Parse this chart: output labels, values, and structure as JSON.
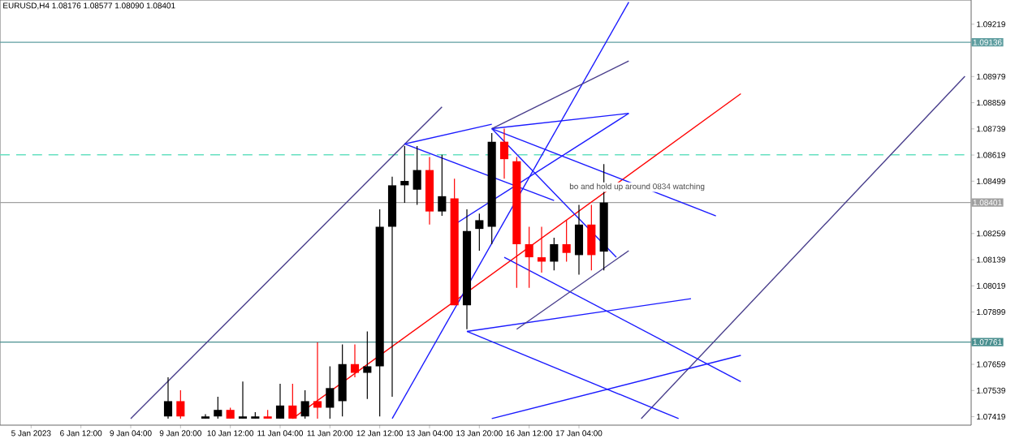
{
  "chart_data": {
    "type": "candlestick",
    "title": "EURUSD,H4  1.08176 1.08577 1.08090 1.08401",
    "categories": [
      null,
      null,
      "5 Jan 2023",
      null,
      null,
      null,
      "6 Jan 12:00",
      null,
      null,
      null,
      "9 Jan 04:00",
      null,
      null,
      null,
      "9 Jan 20:00",
      null,
      null,
      null,
      "10 Jan 12:00",
      null,
      null,
      null,
      "11 Jan 04:00",
      null,
      null,
      null,
      "11 Jan 20:00",
      null,
      null,
      null,
      "12 Jan 12:00",
      null,
      null,
      null,
      "13 Jan 04:00",
      null,
      null,
      null,
      "13 Jan 20:00",
      null,
      null,
      null,
      "16 Jan 12:00",
      null,
      null,
      null,
      "17 Jan 04:00",
      null,
      null,
      null,
      null,
      null,
      null,
      null,
      null,
      null,
      null,
      null,
      null,
      null,
      null,
      null,
      null,
      null,
      null,
      null,
      null,
      null,
      null,
      null,
      null,
      null,
      null,
      null,
      null,
      null,
      null,
      null
    ],
    "ohlc": [
      null,
      null,
      null,
      null,
      null,
      null,
      null,
      null,
      null,
      null,
      null,
      null,
      null,
      [
        1.0742,
        1.076,
        1.0741,
        1.0749
      ],
      [
        1.0749,
        1.0754,
        1.0741,
        1.0742
      ],
      null,
      [
        1.0741,
        1.0743,
        1.0741,
        1.0742
      ],
      [
        1.0742,
        1.0751,
        1.0741,
        1.0745
      ],
      [
        1.0745,
        1.0746,
        1.0741,
        1.0741
      ],
      [
        1.0741,
        1.0758,
        1.0741,
        1.0742
      ],
      [
        1.0741,
        1.0744,
        1.0741,
        1.0742
      ],
      [
        1.0742,
        1.0745,
        1.0741,
        1.0741
      ],
      [
        1.0741,
        1.0757,
        1.0741,
        1.0747
      ],
      [
        1.0747,
        1.0757,
        1.0741,
        1.0741
      ],
      [
        1.0742,
        1.0754,
        1.0741,
        1.0749
      ],
      [
        1.0749,
        1.0776,
        1.0741,
        1.0746
      ],
      [
        1.0746,
        1.0765,
        1.0741,
        1.0755
      ],
      [
        1.0749,
        1.0775,
        1.0742,
        1.0766
      ],
      [
        1.0766,
        1.0775,
        1.076,
        1.0762
      ],
      [
        1.0762,
        1.0781,
        1.075,
        1.0765
      ],
      [
        1.0765,
        1.0837,
        1.0742,
        1.0829
      ],
      [
        1.0829,
        1.0852,
        1.0751,
        1.0848
      ],
      [
        1.0848,
        1.0866,
        1.084,
        1.085
      ],
      [
        1.0846,
        1.0866,
        1.0839,
        1.0855
      ],
      [
        1.0855,
        1.0861,
        1.083,
        1.0836
      ],
      [
        1.0836,
        1.0862,
        1.0834,
        1.0843
      ],
      [
        1.0842,
        1.0851,
        1.0793,
        1.0793
      ],
      [
        1.0793,
        1.0837,
        1.0782,
        1.0827
      ],
      [
        1.0828,
        1.0835,
        1.0818,
        1.0832
      ],
      [
        1.0829,
        1.0872,
        1.0821,
        1.0868
      ],
      [
        1.0868,
        1.0874,
        1.0851,
        1.086
      ],
      [
        1.0859,
        1.0861,
        1.0801,
        1.0821
      ],
      [
        1.0821,
        1.0829,
        1.0801,
        1.0815
      ],
      [
        1.0815,
        1.0829,
        1.0808,
        1.0813
      ],
      [
        1.0813,
        1.0824,
        1.0809,
        1.0821
      ],
      [
        1.0821,
        1.0832,
        1.0813,
        1.0817
      ],
      [
        1.0816,
        1.0839,
        1.0807,
        1.083
      ],
      [
        1.083,
        1.0839,
        1.0809,
        1.0816
      ],
      [
        1.08176,
        1.08577,
        1.0809,
        1.08401
      ],
      null,
      null,
      null,
      null,
      null,
      null,
      null,
      null,
      null,
      null,
      null,
      null,
      null,
      null,
      null,
      null,
      null,
      null,
      null,
      null,
      null,
      null,
      null,
      null,
      null,
      null,
      null,
      null,
      null
    ],
    "colors": [
      null,
      null,
      null,
      null,
      null,
      null,
      null,
      null,
      null,
      null,
      null,
      null,
      null,
      "#000000",
      "#ff0000",
      null,
      "#000000",
      "#000000",
      "#ff0000",
      "#000000",
      "#000000",
      "#ff0000",
      "#000000",
      "#ff0000",
      "#000000",
      "#ff0000",
      "#000000",
      "#000000",
      "#ff0000",
      "#000000",
      "#000000",
      "#000000",
      "#000000",
      "#000000",
      "#ff0000",
      "#000000",
      "#ff0000",
      "#000000",
      "#000000",
      "#000000",
      "#ff0000",
      "#ff0000",
      "#ff0000",
      "#ff0000",
      "#000000",
      "#ff0000",
      "#000000",
      "#ff0000",
      "#000000",
      null,
      null,
      null,
      null,
      null,
      null,
      null,
      null,
      null,
      null,
      null,
      null,
      null,
      null,
      null,
      null,
      null,
      null,
      null,
      null,
      null,
      null,
      null,
      null,
      null,
      null,
      null,
      null,
      null
    ],
    "series": [
      {
        "type": "line",
        "color": "#ff0000",
        "values": [
          null,
          null,
          null,
          null,
          null,
          null,
          null,
          null,
          null,
          null,
          null,
          null,
          null,
          null,
          null,
          null,
          null,
          null,
          null,
          null,
          null,
          null,
          null,
          1.0741,
          null,
          null,
          null,
          null,
          null,
          null,
          null,
          null,
          null,
          null,
          null,
          null,
          null,
          null,
          null,
          null,
          null,
          null,
          null,
          null,
          null,
          null,
          null,
          null,
          null,
          null,
          null,
          null,
          null,
          null,
          null,
          null,
          null,
          null,
          null,
          1.089,
          null,
          null,
          null,
          null,
          null,
          null,
          null,
          null,
          null,
          null,
          null,
          null,
          null,
          null,
          null,
          null,
          null,
          null
        ]
      },
      {
        "type": "line",
        "color": "#483d8b",
        "values": [
          null,
          null,
          null,
          null,
          null,
          null,
          null,
          null,
          null,
          null,
          1.0741,
          null,
          null,
          null,
          null,
          null,
          null,
          null,
          null,
          null,
          null,
          null,
          null,
          null,
          null,
          null,
          null,
          null,
          null,
          null,
          null,
          null,
          null,
          null,
          null,
          1.0884,
          null,
          null,
          null,
          null,
          null,
          null,
          null,
          null,
          null,
          null,
          null,
          null,
          null,
          null,
          null,
          null,
          null,
          null,
          null,
          null,
          null,
          null,
          null,
          null,
          null,
          null,
          null,
          null,
          null,
          null,
          null,
          null,
          null,
          null,
          null,
          null,
          null,
          null,
          null,
          null,
          null,
          null
        ]
      },
      {
        "type": "line",
        "color": "#483d8b",
        "values": [
          null,
          null,
          null,
          null,
          null,
          null,
          null,
          null,
          null,
          null,
          null,
          null,
          null,
          null,
          null,
          null,
          null,
          null,
          null,
          null,
          null,
          null,
          null,
          null,
          null,
          null,
          null,
          null,
          null,
          null,
          null,
          null,
          null,
          null,
          null,
          null,
          null,
          null,
          null,
          null,
          null,
          null,
          null,
          null,
          null,
          null,
          null,
          null,
          null,
          null,
          null,
          1.0741,
          null,
          null,
          null,
          null,
          null,
          null,
          null,
          null,
          null,
          null,
          null,
          null,
          null,
          null,
          null,
          null,
          null,
          null,
          null,
          null,
          null,
          null,
          null,
          null,
          null,
          1.0898
        ]
      },
      {
        "type": "line",
        "color": "#1a1aff",
        "values": [
          null,
          null,
          null,
          null,
          null,
          null,
          null,
          null,
          null,
          null,
          null,
          null,
          null,
          null,
          null,
          null,
          null,
          null,
          null,
          null,
          null,
          null,
          null,
          null,
          null,
          null,
          null,
          null,
          null,
          null,
          null,
          1.0741,
          null,
          null,
          null,
          null,
          null,
          null,
          null,
          null,
          null,
          null,
          null,
          null,
          null,
          null,
          null,
          null,
          null,
          null,
          1.0932,
          null,
          null,
          null,
          null,
          null,
          null,
          null,
          null,
          null,
          null,
          null,
          null,
          null,
          null,
          null,
          null,
          null,
          null,
          null,
          null,
          null,
          null,
          null,
          null,
          null,
          null,
          null
        ]
      },
      {
        "type": "line",
        "color": "#1a1aff",
        "values": [
          null,
          null,
          null,
          null,
          null,
          null,
          null,
          null,
          null,
          null,
          null,
          null,
          null,
          null,
          null,
          null,
          null,
          null,
          null,
          null,
          null,
          null,
          null,
          null,
          null,
          null,
          null,
          null,
          null,
          null,
          null,
          null,
          null,
          null,
          null,
          null,
          null,
          1.0781,
          null,
          null,
          null,
          null,
          null,
          null,
          null,
          null,
          null,
          null,
          null,
          null,
          null,
          null,
          null,
          null,
          null,
          1.0796,
          null,
          null,
          null,
          null,
          null,
          null,
          null,
          null,
          null,
          null,
          null,
          null,
          null,
          null,
          null,
          null,
          null,
          null,
          null,
          null,
          null,
          null
        ]
      },
      {
        "type": "line",
        "color": "#1a1aff",
        "values": [
          null,
          null,
          null,
          null,
          null,
          null,
          null,
          null,
          null,
          null,
          null,
          null,
          null,
          null,
          null,
          null,
          null,
          null,
          null,
          null,
          null,
          null,
          null,
          null,
          null,
          null,
          null,
          null,
          null,
          null,
          null,
          null,
          null,
          null,
          null,
          null,
          null,
          1.0781,
          null,
          null,
          null,
          null,
          null,
          null,
          null,
          null,
          null,
          null,
          null,
          null,
          null,
          null,
          null,
          null,
          1.0741,
          null,
          null,
          null,
          null,
          null,
          null,
          null,
          null,
          null,
          null,
          null,
          null,
          null,
          null,
          null,
          null,
          null,
          null,
          null,
          null,
          null,
          null,
          null
        ]
      },
      {
        "type": "line",
        "color": "#1a1aff",
        "values": [
          null,
          null,
          null,
          null,
          null,
          null,
          null,
          null,
          null,
          null,
          null,
          null,
          null,
          null,
          null,
          null,
          null,
          null,
          null,
          null,
          null,
          null,
          null,
          null,
          null,
          null,
          null,
          null,
          null,
          null,
          null,
          null,
          null,
          null,
          null,
          null,
          null,
          null,
          null,
          1.0741,
          null,
          null,
          null,
          null,
          null,
          null,
          null,
          null,
          null,
          null,
          null,
          null,
          null,
          null,
          null,
          null,
          null,
          null,
          null,
          1.077,
          null,
          null,
          null,
          null,
          null,
          null,
          null,
          null,
          null,
          null,
          null,
          null,
          null,
          null,
          null,
          null,
          null,
          null
        ]
      },
      {
        "type": "line",
        "color": "#1a1aff",
        "values": [
          null,
          null,
          null,
          null,
          null,
          null,
          null,
          null,
          null,
          null,
          null,
          null,
          null,
          null,
          null,
          null,
          null,
          null,
          null,
          null,
          null,
          null,
          null,
          null,
          null,
          null,
          null,
          null,
          null,
          null,
          null,
          null,
          1.0867,
          null,
          null,
          null,
          null,
          null,
          null,
          1.0876,
          null,
          null,
          null,
          null,
          null,
          null,
          null,
          null,
          null,
          null,
          null,
          null,
          null,
          null,
          null,
          null,
          null,
          null,
          null,
          null,
          null,
          null,
          null,
          null,
          null,
          null,
          null,
          null,
          null,
          null,
          null,
          null,
          null,
          null,
          null,
          null,
          null,
          null
        ]
      },
      {
        "type": "line",
        "color": "#1a1aff",
        "values": [
          null,
          null,
          null,
          null,
          null,
          null,
          null,
          null,
          null,
          null,
          null,
          null,
          null,
          null,
          null,
          null,
          null,
          null,
          null,
          null,
          null,
          null,
          null,
          null,
          null,
          null,
          null,
          null,
          null,
          null,
          null,
          null,
          1.0867,
          null,
          null,
          null,
          null,
          null,
          null,
          null,
          null,
          null,
          null,
          null,
          1.0841,
          null,
          null,
          null,
          null,
          null,
          null,
          null,
          null,
          null,
          null,
          null,
          null,
          null,
          null,
          null,
          null,
          null,
          null,
          null,
          null,
          null,
          null,
          null,
          null,
          null,
          null,
          null,
          null,
          null,
          null,
          null,
          null,
          null
        ]
      },
      {
        "type": "line",
        "color": "#1a1aff",
        "values": [
          null,
          null,
          null,
          null,
          null,
          null,
          null,
          null,
          null,
          null,
          null,
          null,
          null,
          null,
          null,
          null,
          null,
          null,
          null,
          null,
          null,
          null,
          null,
          null,
          null,
          null,
          null,
          null,
          null,
          null,
          null,
          null,
          null,
          null,
          null,
          null,
          null,
          null,
          null,
          1.0874,
          null,
          null,
          null,
          null,
          null,
          null,
          null,
          null,
          null,
          null,
          1.0881,
          null,
          null,
          null,
          null,
          null,
          null,
          null,
          null,
          null,
          null,
          null,
          null,
          null,
          null,
          null,
          null,
          null,
          null,
          null,
          null,
          null,
          null,
          null,
          null,
          null,
          null,
          null
        ]
      },
      {
        "type": "line",
        "color": "#1a1aff",
        "values": [
          null,
          null,
          null,
          null,
          null,
          null,
          null,
          null,
          null,
          null,
          null,
          null,
          null,
          null,
          null,
          null,
          null,
          null,
          null,
          null,
          null,
          null,
          null,
          null,
          null,
          null,
          null,
          null,
          null,
          null,
          null,
          null,
          null,
          null,
          null,
          null,
          null,
          null,
          null,
          1.0874,
          null,
          null,
          null,
          null,
          null,
          null,
          null,
          null,
          null,
          null,
          null,
          null,
          null,
          null,
          null,
          null,
          null,
          1.0834,
          null,
          null,
          null,
          null,
          null,
          null,
          null,
          null,
          null,
          null,
          null,
          null,
          null,
          null,
          null,
          null,
          null,
          null,
          null,
          null
        ]
      },
      {
        "type": "line",
        "color": "#483d8b",
        "values": [
          null,
          null,
          null,
          null,
          null,
          null,
          null,
          null,
          null,
          null,
          null,
          null,
          null,
          null,
          null,
          null,
          null,
          null,
          null,
          null,
          null,
          null,
          null,
          null,
          null,
          null,
          null,
          null,
          null,
          null,
          null,
          null,
          null,
          null,
          null,
          null,
          null,
          null,
          null,
          1.0874,
          null,
          null,
          null,
          null,
          null,
          null,
          null,
          null,
          null,
          null,
          1.0905,
          null,
          null,
          null,
          null,
          null,
          null,
          null,
          null,
          null,
          null,
          null,
          null,
          null,
          null,
          null,
          null,
          null,
          null,
          null,
          null,
          null,
          null,
          null,
          null,
          null,
          null,
          null
        ]
      },
      {
        "type": "line",
        "color": "#1a1aff",
        "values": [
          null,
          null,
          null,
          null,
          null,
          null,
          null,
          null,
          null,
          null,
          null,
          null,
          null,
          null,
          null,
          null,
          null,
          null,
          null,
          null,
          null,
          null,
          null,
          null,
          null,
          null,
          null,
          null,
          null,
          null,
          null,
          null,
          null,
          null,
          null,
          null,
          1.083,
          null,
          null,
          null,
          null,
          null,
          null,
          null,
          null,
          null,
          null,
          null,
          null,
          null,
          1.0881,
          null,
          null,
          null,
          null,
          null,
          null,
          null,
          null,
          null,
          null,
          null,
          null,
          null,
          null,
          null,
          null,
          null,
          null,
          null,
          null,
          null,
          null,
          null,
          null,
          null,
          null,
          null
        ]
      },
      {
        "type": "line",
        "color": "#1a1aff",
        "values": [
          null,
          null,
          null,
          null,
          null,
          null,
          null,
          null,
          null,
          null,
          null,
          null,
          null,
          null,
          null,
          null,
          null,
          null,
          null,
          null,
          null,
          null,
          null,
          null,
          null,
          null,
          null,
          null,
          null,
          null,
          null,
          null,
          null,
          null,
          null,
          null,
          null,
          null,
          null,
          1.0874,
          null,
          null,
          null,
          null,
          null,
          null,
          null,
          null,
          null,
          1.0815,
          null,
          null,
          null,
          null,
          null,
          null,
          null,
          null,
          null,
          null,
          null,
          null,
          null,
          null,
          null,
          null,
          null,
          null,
          null,
          null,
          null,
          null,
          null,
          null,
          null,
          null,
          null,
          null
        ]
      },
      {
        "type": "line",
        "color": "#1a1aff",
        "values": [
          null,
          null,
          null,
          null,
          null,
          null,
          null,
          null,
          null,
          null,
          null,
          null,
          null,
          null,
          null,
          null,
          null,
          null,
          null,
          null,
          null,
          null,
          null,
          null,
          null,
          null,
          null,
          null,
          null,
          null,
          null,
          null,
          null,
          null,
          null,
          null,
          null,
          null,
          null,
          null,
          1.0815,
          null,
          null,
          null,
          null,
          null,
          null,
          null,
          null,
          null,
          null,
          null,
          null,
          null,
          null,
          null,
          null,
          null,
          null,
          1.0758,
          null,
          null,
          null,
          null,
          null,
          null,
          null,
          null,
          null,
          null,
          null,
          null,
          null,
          null,
          null,
          null,
          null,
          null
        ]
      },
      {
        "type": "line",
        "color": "#483d8b",
        "values": [
          null,
          null,
          null,
          null,
          null,
          null,
          null,
          null,
          null,
          null,
          null,
          null,
          null,
          null,
          null,
          null,
          null,
          null,
          null,
          null,
          null,
          null,
          null,
          null,
          null,
          null,
          null,
          null,
          null,
          null,
          null,
          null,
          null,
          null,
          null,
          null,
          null,
          null,
          null,
          null,
          null,
          1.0782,
          null,
          null,
          null,
          null,
          null,
          null,
          null,
          null,
          1.0818,
          null,
          null,
          null,
          null,
          null,
          null,
          null,
          null,
          null,
          null,
          null,
          null,
          null,
          null,
          null,
          null,
          null,
          null,
          null,
          null,
          null,
          null,
          null,
          null,
          null,
          null,
          null
        ]
      }
    ],
    "ref_lines": [
      {
        "axis": "y",
        "value": 1.09136,
        "label": "1.09136",
        "color": "#5f9ea0"
      },
      {
        "axis": "y",
        "value": 1.08401,
        "label": "1.08401",
        "color": "#a0a0a0"
      },
      {
        "axis": "y",
        "value": 1.07761,
        "label": "1.07761",
        "color": "#4a8f8f"
      },
      {
        "axis": "y",
        "value": 1.0862,
        "color": "#66e0c0",
        "line_style": "dashed"
      }
    ],
    "annotations": [
      "bo  and hold up around 0834 watching"
    ],
    "ylim": [
      1.0738,
      1.0933
    ],
    "yticks": [
      1.07419,
      1.07539,
      1.07659,
      1.07899,
      1.08019,
      1.08139,
      1.08259,
      1.08499,
      1.08619,
      1.08739,
      1.08859,
      1.08979,
      1.09219
    ]
  }
}
